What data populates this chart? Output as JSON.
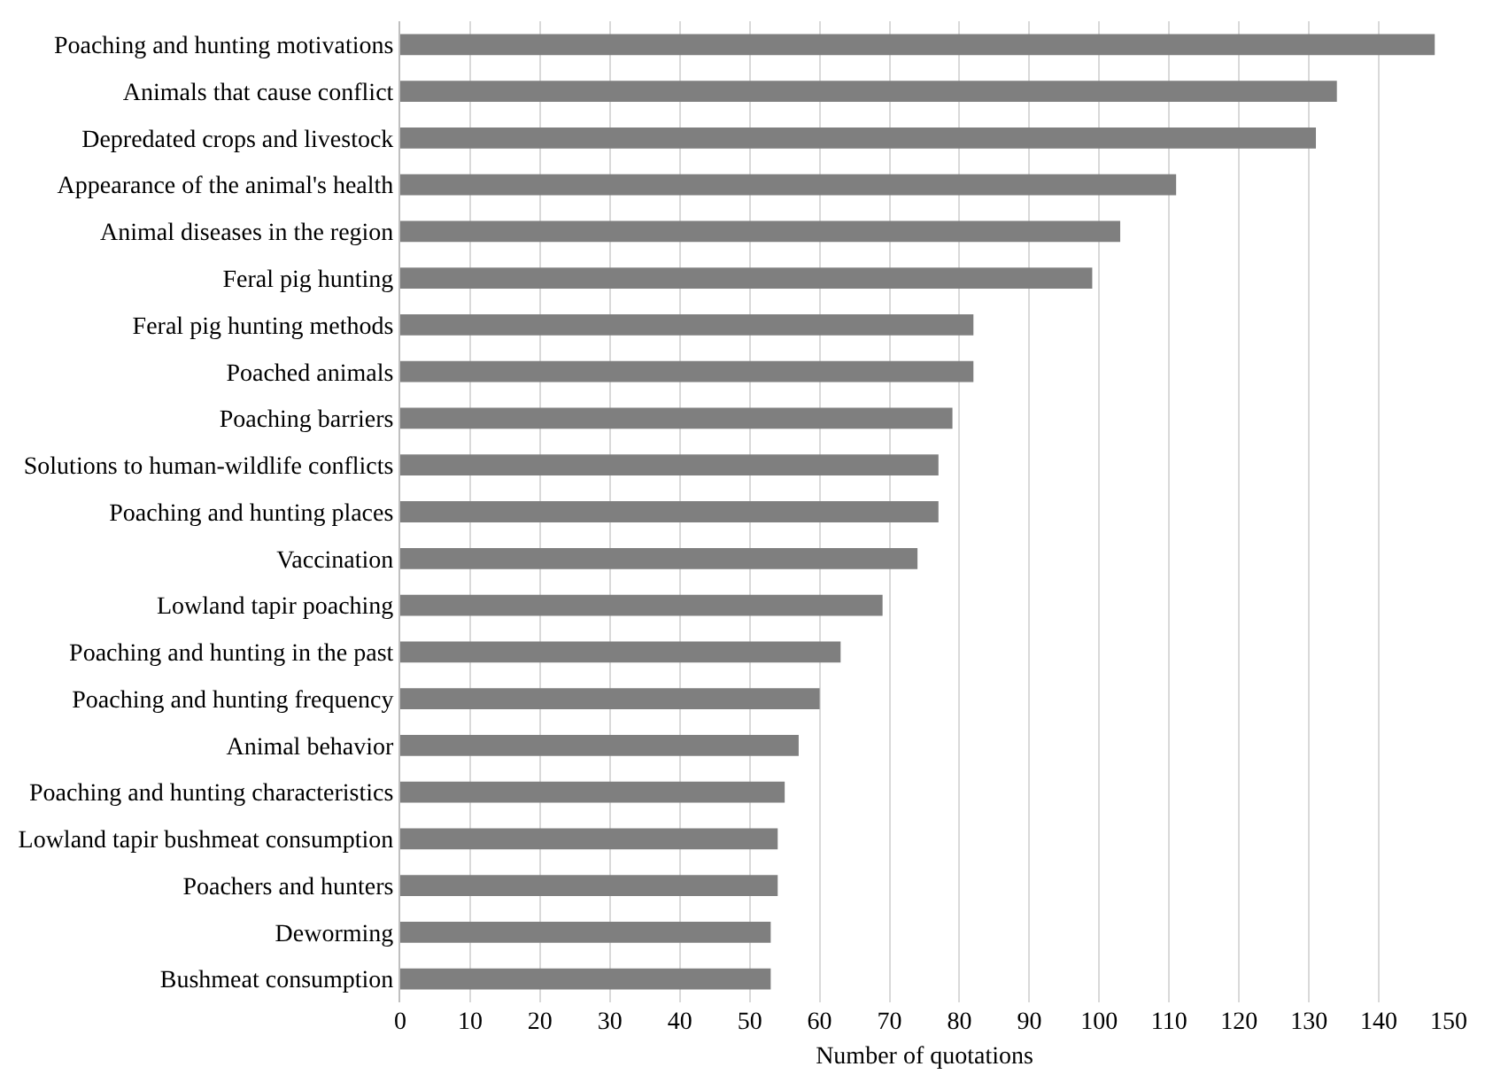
{
  "chart_data": {
    "type": "bar",
    "orientation": "horizontal",
    "xlabel": "Number of quotations",
    "categories": [
      "Poaching and hunting motivations",
      "Animals that cause conflict",
      "Depredated crops and livestock",
      "Appearance of the animal's health",
      "Animal diseases in the region",
      "Feral pig hunting",
      "Feral pig hunting methods",
      "Poached animals",
      "Poaching barriers",
      "Solutions to human-wildlife conflicts",
      "Poaching and hunting places",
      "Vaccination",
      "Lowland tapir poaching",
      "Poaching and hunting in the past",
      "Poaching and hunting frequency",
      "Animal behavior",
      "Poaching and hunting characteristics",
      "Lowland tapir bushmeat consumption",
      "Poachers and hunters",
      "Deworming",
      "Bushmeat consumption"
    ],
    "values": [
      148,
      134,
      131,
      111,
      103,
      99,
      82,
      82,
      79,
      77,
      77,
      74,
      69,
      63,
      60,
      57,
      55,
      54,
      54,
      53,
      53
    ],
    "color": "#7f7f7f",
    "xlim": [
      0,
      150
    ],
    "xticks": [
      0,
      10,
      20,
      30,
      40,
      50,
      60,
      70,
      80,
      90,
      100,
      110,
      120,
      130,
      140,
      150
    ],
    "grid": "x"
  }
}
